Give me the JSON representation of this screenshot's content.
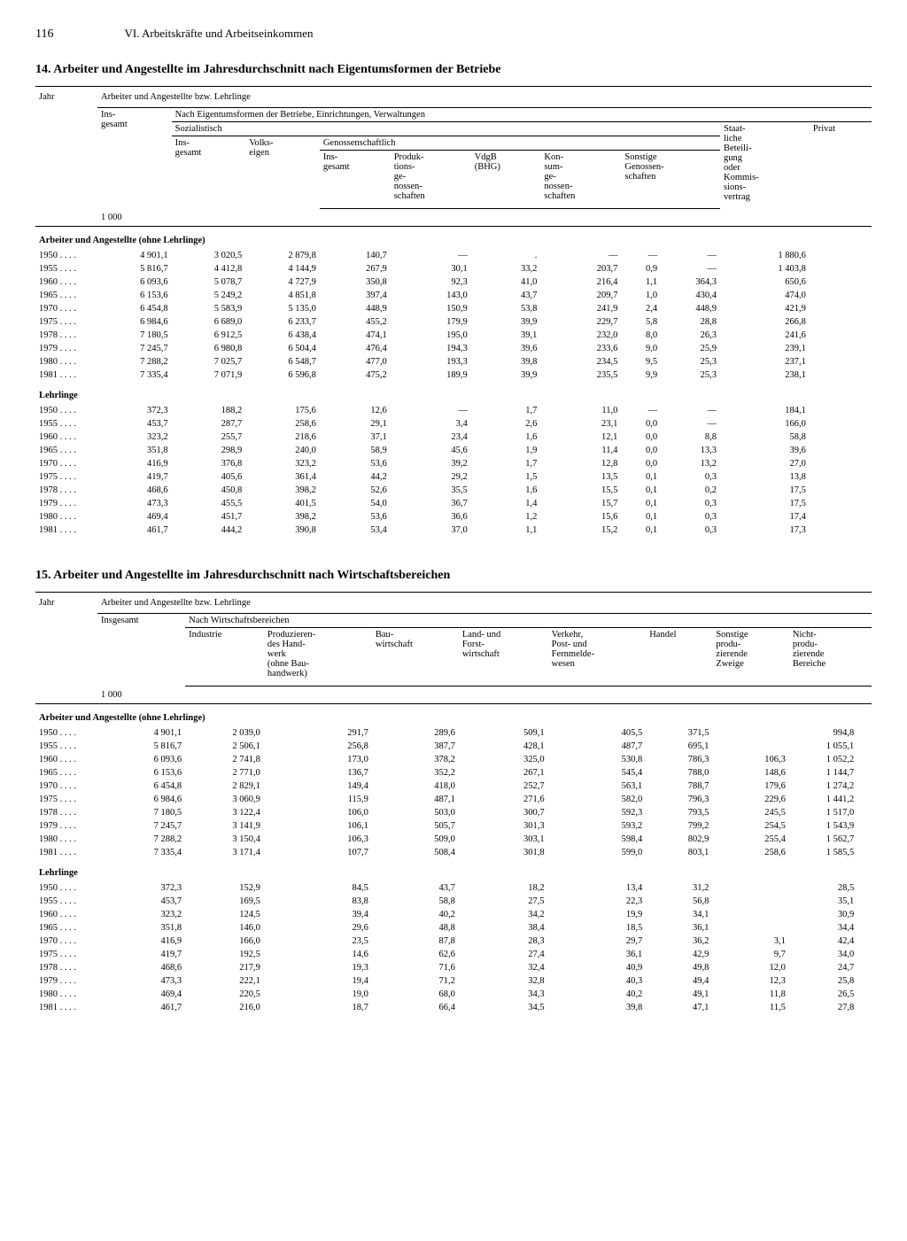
{
  "page": {
    "number": "116",
    "section": "VI. Arbeitskräfte und Arbeitseinkommen"
  },
  "table14": {
    "title": "14. Arbeiter und Angestellte im Jahresdurchschnitt nach Eigentumsformen der Betriebe",
    "headers": {
      "jahr": "Jahr",
      "top": "Arbeiter und Angestellte bzw. Lehrlinge",
      "insgesamt": "Ins-\ngesamt",
      "nach": "Nach Eigentumsformen der Betriebe, Einrichtungen, Verwaltungen",
      "sozialistisch": "Sozialistisch",
      "soz_insgesamt": "Ins-\ngesamt",
      "volkseigen": "Volks-\neigen",
      "genossen": "Genossenschaftlich",
      "gen_insgesamt": "Ins-\ngesamt",
      "produktions": "Produk-\ntions-\nge-\nnossen-\nschaften",
      "vdgb": "VdgB\n(BHG)",
      "konsum": "Kon-\nsum-\nge-\nnossen-\nschaften",
      "sonstige": "Sonstige\nGenossen-\nschaften",
      "staatlich": "Staat-\nliche\nBeteili-\ngung\noder\nKommis-\nsions-\nvertrag",
      "privat": "Privat",
      "unit": "1 000"
    },
    "section1_label": "Arbeiter und Angestellte (ohne Lehrlinge)",
    "section1_rows": [
      {
        "year": "1950",
        "c": [
          "4 901,1",
          "3 020,5",
          "2 879,8",
          "140,7",
          "—",
          ".",
          "—",
          "—",
          "—",
          "1 880,6"
        ]
      },
      {
        "year": "1955",
        "c": [
          "5 816,7",
          "4 412,8",
          "4 144,9",
          "267,9",
          "30,1",
          "33,2",
          "203,7",
          "0,9",
          "—",
          "1 403,8"
        ]
      },
      {
        "year": "1960",
        "c": [
          "6 093,6",
          "5 078,7",
          "4 727,9",
          "350,8",
          "92,3",
          "41,0",
          "216,4",
          "1,1",
          "364,3",
          "650,6"
        ]
      },
      {
        "year": "1965",
        "c": [
          "6 153,6",
          "5 249,2",
          "4 851,8",
          "397,4",
          "143,0",
          "43,7",
          "209,7",
          "1,0",
          "430,4",
          "474,0"
        ]
      },
      {
        "year": "1970",
        "c": [
          "6 454,8",
          "5 583,9",
          "5 135,0",
          "448,9",
          "150,9",
          "53,8",
          "241,9",
          "2,4",
          "448,9",
          "421,9"
        ]
      },
      {
        "year": "1975",
        "c": [
          "6 984,6",
          "6 689,0",
          "6 233,7",
          "455,2",
          "179,9",
          "39,9",
          "229,7",
          "5,8",
          "28,8",
          "266,8"
        ]
      },
      {
        "year": "1978",
        "c": [
          "7 180,5",
          "6 912,5",
          "6 438,4",
          "474,1",
          "195,0",
          "39,1",
          "232,0",
          "8,0",
          "26,3",
          "241,6"
        ]
      },
      {
        "year": "1979",
        "c": [
          "7 245,7",
          "6 980,8",
          "6 504,4",
          "476,4",
          "194,3",
          "39,6",
          "233,6",
          "9,0",
          "25,9",
          "239,1"
        ]
      },
      {
        "year": "1980",
        "c": [
          "7 288,2",
          "7 025,7",
          "6 548,7",
          "477,0",
          "193,3",
          "39,8",
          "234,5",
          "9,5",
          "25,3",
          "237,1"
        ]
      },
      {
        "year": "1981",
        "c": [
          "7 335,4",
          "7 071,9",
          "6 596,8",
          "475,2",
          "189,9",
          "39,9",
          "235,5",
          "9,9",
          "25,3",
          "238,1"
        ]
      }
    ],
    "section2_label": "Lehrlinge",
    "section2_rows": [
      {
        "year": "1950",
        "c": [
          "372,3",
          "188,2",
          "175,6",
          "12,6",
          "—",
          "1,7",
          "11,0",
          "—",
          "—",
          "184,1"
        ]
      },
      {
        "year": "1955",
        "c": [
          "453,7",
          "287,7",
          "258,6",
          "29,1",
          "3,4",
          "2,6",
          "23,1",
          "0,0",
          "—",
          "166,0"
        ]
      },
      {
        "year": "1960",
        "c": [
          "323,2",
          "255,7",
          "218,6",
          "37,1",
          "23,4",
          "1,6",
          "12,1",
          "0,0",
          "8,8",
          "58,8"
        ]
      },
      {
        "year": "1965",
        "c": [
          "351,8",
          "298,9",
          "240,0",
          "58,9",
          "45,6",
          "1,9",
          "11,4",
          "0,0",
          "13,3",
          "39,6"
        ]
      },
      {
        "year": "1970",
        "c": [
          "416,9",
          "376,8",
          "323,2",
          "53,6",
          "39,2",
          "1,7",
          "12,8",
          "0,0",
          "13,2",
          "27,0"
        ]
      },
      {
        "year": "1975",
        "c": [
          "419,7",
          "405,6",
          "361,4",
          "44,2",
          "29,2",
          "1,5",
          "13,5",
          "0,1",
          "0,3",
          "13,8"
        ]
      },
      {
        "year": "1978",
        "c": [
          "468,6",
          "450,8",
          "398,2",
          "52,6",
          "35,5",
          "1,6",
          "15,5",
          "0,1",
          "0,2",
          "17,5"
        ]
      },
      {
        "year": "1979",
        "c": [
          "473,3",
          "455,5",
          "401,5",
          "54,0",
          "36,7",
          "1,4",
          "15,7",
          "0,1",
          "0,3",
          "17,5"
        ]
      },
      {
        "year": "1980",
        "c": [
          "469,4",
          "451,7",
          "398,2",
          "53,6",
          "36,6",
          "1,2",
          "15,6",
          "0,1",
          "0,3",
          "17,4"
        ]
      },
      {
        "year": "1981",
        "c": [
          "461,7",
          "444,2",
          "390,8",
          "53,4",
          "37,0",
          "1,1",
          "15,2",
          "0,1",
          "0,3",
          "17,3"
        ]
      }
    ]
  },
  "table15": {
    "title": "15. Arbeiter und Angestellte im Jahresdurchschnitt nach Wirtschaftsbereichen",
    "headers": {
      "jahr": "Jahr",
      "top": "Arbeiter und Angestellte bzw. Lehrlinge",
      "insgesamt": "Insgesamt",
      "nach": "Nach Wirtschaftsbereichen",
      "industrie": "Industrie",
      "handwerk": "Produzieren-\ndes Hand-\nwerk\n(ohne Bau-\nhandwerk)",
      "bau": "Bau-\nwirtschaft",
      "land": "Land- und\nForst-\nwirtschaft",
      "verkehr": "Verkehr,\nPost- und\nFernmelde-\nwesen",
      "handel": "Handel",
      "sonstige": "Sonstige\nprodu-\nzierende\nZweige",
      "nicht": "Nicht-\nprodu-\nzierende\nBereiche",
      "unit": "1 000"
    },
    "section1_label": "Arbeiter und Angestellte (ohne Lehrlinge)",
    "section1_rows": [
      {
        "year": "1950",
        "c": [
          "4 901,1",
          "2 039,0",
          "291,7",
          "289,6",
          "509,1",
          "405,5",
          "371,5",
          "",
          "994,8"
        ]
      },
      {
        "year": "1955",
        "c": [
          "5 816,7",
          "2 506,1",
          "256,8",
          "387,7",
          "428,1",
          "487,7",
          "695,1",
          "",
          "1 055,1"
        ]
      },
      {
        "year": "1960",
        "c": [
          "6 093,6",
          "2 741,8",
          "173,0",
          "378,2",
          "325,0",
          "530,8",
          "786,3",
          "106,3",
          "1 052,2"
        ]
      },
      {
        "year": "1965",
        "c": [
          "6 153,6",
          "2 771,0",
          "136,7",
          "352,2",
          "267,1",
          "545,4",
          "788,0",
          "148,6",
          "1 144,7"
        ]
      },
      {
        "year": "1970",
        "c": [
          "6 454,8",
          "2 829,1",
          "149,4",
          "418,0",
          "252,7",
          "563,1",
          "788,7",
          "179,6",
          "1 274,2"
        ]
      },
      {
        "year": "1975",
        "c": [
          "6 984,6",
          "3 060,9",
          "115,9",
          "487,1",
          "271,6",
          "582,0",
          "796,3",
          "229,6",
          "1 441,2"
        ]
      },
      {
        "year": "1978",
        "c": [
          "7 180,5",
          "3 122,4",
          "106,0",
          "503,0",
          "300,7",
          "592,3",
          "793,5",
          "245,5",
          "1 517,0"
        ]
      },
      {
        "year": "1979",
        "c": [
          "7 245,7",
          "3 141,9",
          "106,1",
          "505,7",
          "301,3",
          "593,2",
          "799,2",
          "254,5",
          "1 543,9"
        ]
      },
      {
        "year": "1980",
        "c": [
          "7 288,2",
          "3 150,4",
          "106,3",
          "509,0",
          "303,1",
          "598,4",
          "802,9",
          "255,4",
          "1 562,7"
        ]
      },
      {
        "year": "1981",
        "c": [
          "7 335,4",
          "3 171,4",
          "107,7",
          "508,4",
          "301,8",
          "599,0",
          "803,1",
          "258,6",
          "1 585,5"
        ]
      }
    ],
    "section2_label": "Lehrlinge",
    "section2_rows": [
      {
        "year": "1950",
        "c": [
          "372,3",
          "152,9",
          "84,5",
          "43,7",
          "18,2",
          "13,4",
          "31,2",
          "",
          "28,5"
        ]
      },
      {
        "year": "1955",
        "c": [
          "453,7",
          "169,5",
          "83,8",
          "58,8",
          "27,5",
          "22,3",
          "56,8",
          "",
          "35,1"
        ]
      },
      {
        "year": "1960",
        "c": [
          "323,2",
          "124,5",
          "39,4",
          "40,2",
          "34,2",
          "19,9",
          "34,1",
          "",
          "30,9"
        ]
      },
      {
        "year": "1965",
        "c": [
          "351,8",
          "146,0",
          "29,6",
          "48,8",
          "38,4",
          "18,5",
          "36,1",
          "",
          "34,4"
        ]
      },
      {
        "year": "1970",
        "c": [
          "416,9",
          "166,0",
          "23,5",
          "87,8",
          "28,3",
          "29,7",
          "36,2",
          "3,1",
          "42,4"
        ]
      },
      {
        "year": "1975",
        "c": [
          "419,7",
          "192,5",
          "14,6",
          "62,6",
          "27,4",
          "36,1",
          "42,9",
          "9,7",
          "34,0"
        ]
      },
      {
        "year": "1978",
        "c": [
          "468,6",
          "217,9",
          "19,3",
          "71,6",
          "32,4",
          "40,9",
          "49,8",
          "12,0",
          "24,7"
        ]
      },
      {
        "year": "1979",
        "c": [
          "473,3",
          "222,1",
          "19,4",
          "71,2",
          "32,8",
          "40,3",
          "49,4",
          "12,3",
          "25,8"
        ]
      },
      {
        "year": "1980",
        "c": [
          "469,4",
          "220,5",
          "19,0",
          "68,0",
          "34,3",
          "40,2",
          "49,1",
          "11,8",
          "26,5"
        ]
      },
      {
        "year": "1981",
        "c": [
          "461,7",
          "216,0",
          "18,7",
          "66,4",
          "34,5",
          "39,8",
          "47,1",
          "11,5",
          "27,8"
        ]
      }
    ]
  }
}
